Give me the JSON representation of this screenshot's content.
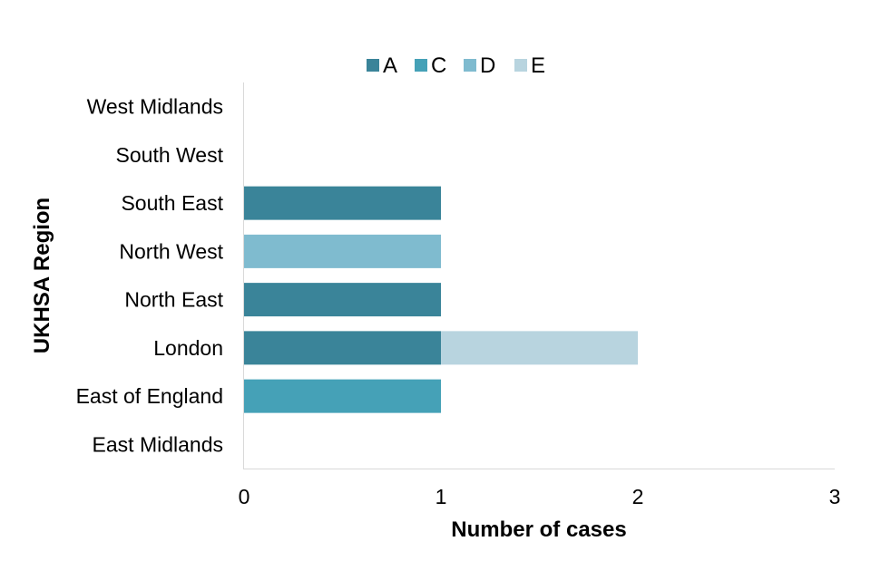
{
  "chart_data": {
    "type": "bar",
    "orientation": "horizontal",
    "stacked": true,
    "xlabel": "Number of cases",
    "ylabel": "UKHSA Region",
    "xlim": [
      0,
      3
    ],
    "xticks": [
      "0",
      "1",
      "2",
      "3"
    ],
    "grid": false,
    "legend_position": "top",
    "categories": [
      "West Midlands",
      "South West",
      "South East",
      "North West",
      "North East",
      "London",
      "East of England",
      "East Midlands"
    ],
    "series": [
      {
        "name": "A",
        "color": "#3a8499",
        "values": [
          0,
          0,
          1,
          0,
          1,
          1,
          0,
          0
        ]
      },
      {
        "name": "C",
        "color": "#45a1b7",
        "values": [
          0,
          0,
          0,
          0,
          0,
          0,
          1,
          0
        ]
      },
      {
        "name": "D",
        "color": "#7fbbcf",
        "values": [
          0,
          0,
          0,
          1,
          0,
          0,
          0,
          0
        ]
      },
      {
        "name": "E",
        "color": "#b8d4df",
        "values": [
          0,
          0,
          0,
          0,
          0,
          1,
          0,
          0
        ]
      }
    ]
  }
}
